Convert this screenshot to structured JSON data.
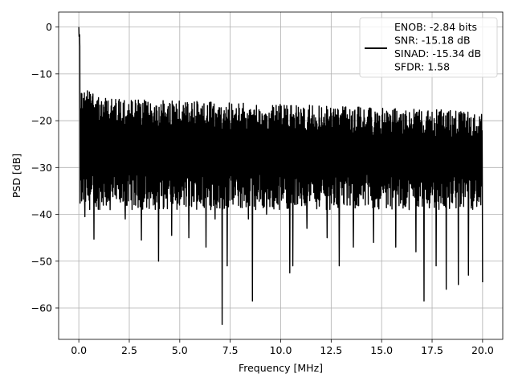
{
  "chart_data": {
    "type": "line",
    "title": "",
    "xlabel": "Frequency [MHz]",
    "ylabel": "PSD [dB]",
    "xlim": [
      -1.0,
      21.0
    ],
    "ylim": [
      -66.7,
      3.2
    ],
    "grid": true,
    "legend_position": "top-right",
    "x_ticks": [
      0.0,
      2.5,
      5.0,
      7.5,
      10.0,
      12.5,
      15.0,
      17.5,
      20.0
    ],
    "x_tick_labels": [
      "0.0",
      "2.5",
      "5.0",
      "7.5",
      "10.0",
      "12.5",
      "15.0",
      "17.5",
      "20.0"
    ],
    "y_ticks": [
      0,
      -10,
      -20,
      -30,
      -40,
      -50,
      -60
    ],
    "y_tick_labels": [
      "0",
      "−10",
      "−20",
      "−30",
      "−40",
      "−50",
      "−60"
    ],
    "line_color": "#000000",
    "legend_lines": [
      "ENOB: -2.84 bits",
      "SNR: -15.18 dB",
      "SINAD: -15.34 dB",
      "SFDR: 1.58"
    ],
    "series": [
      {
        "x_range": [
          0.0,
          20.0
        ],
        "description_values": {
          "start_peak": 0.0,
          "noise_floor_upper_approx": -15,
          "noise_floor_center_approx": -25,
          "noise_floor_lower_approx": -35
        },
        "dips": [
          {
            "x": 0.3,
            "y": -40.5
          },
          {
            "x": 0.75,
            "y": -45.3
          },
          {
            "x": 1.55,
            "y": -39
          },
          {
            "x": 2.3,
            "y": -41
          },
          {
            "x": 3.1,
            "y": -45.5
          },
          {
            "x": 3.95,
            "y": -50
          },
          {
            "x": 4.6,
            "y": -44.5
          },
          {
            "x": 5.45,
            "y": -45
          },
          {
            "x": 6.3,
            "y": -47
          },
          {
            "x": 6.75,
            "y": -41
          },
          {
            "x": 7.1,
            "y": -63.5
          },
          {
            "x": 7.35,
            "y": -51
          },
          {
            "x": 8.4,
            "y": -41
          },
          {
            "x": 8.6,
            "y": -58.5
          },
          {
            "x": 9.3,
            "y": -40
          },
          {
            "x": 10.45,
            "y": -52.5
          },
          {
            "x": 10.6,
            "y": -51
          },
          {
            "x": 11.3,
            "y": -43
          },
          {
            "x": 12.3,
            "y": -45
          },
          {
            "x": 12.9,
            "y": -51
          },
          {
            "x": 13.6,
            "y": -47
          },
          {
            "x": 14.6,
            "y": -46
          },
          {
            "x": 15.7,
            "y": -47
          },
          {
            "x": 16.7,
            "y": -48
          },
          {
            "x": 17.1,
            "y": -58.5
          },
          {
            "x": 17.7,
            "y": -51
          },
          {
            "x": 18.2,
            "y": -56
          },
          {
            "x": 18.8,
            "y": -55
          },
          {
            "x": 19.3,
            "y": -53
          },
          {
            "x": 20.0,
            "y": -54.5
          }
        ]
      }
    ]
  }
}
